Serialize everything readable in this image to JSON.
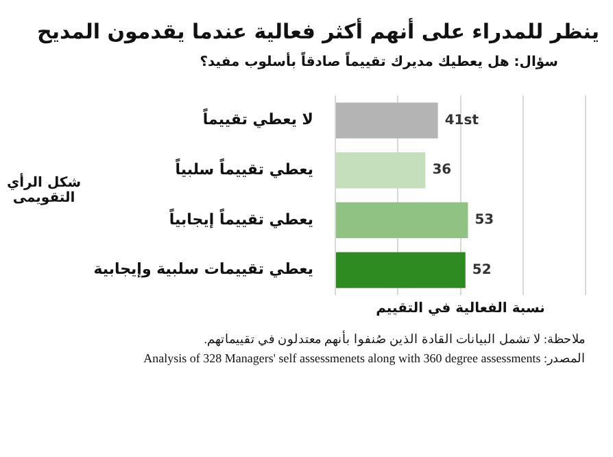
{
  "chart_data": {
    "type": "bar",
    "orientation": "horizontal",
    "title": "ينظر للمدراء على أنهم أكثر فعالية عندما يقدمون المديح",
    "subtitle": "سؤال: هل يعطيك مديرك تقييماً صادقاً بأسلوب مفيد؟",
    "ylabel": "شكل الرأي التقويمى",
    "xlabel": "نسبة الفعالية في التقييم",
    "categories": [
      "لا يعطي تقييماً",
      "يعطي تقييماً سلبياً",
      "يعطي تقييماً إيجابياً",
      "يعطي تقييمات سلبية وإيجابية"
    ],
    "values": [
      41,
      36,
      53,
      52
    ],
    "colors": [
      "#b4b4b4",
      "#c5dfbd",
      "#8fc283",
      "#2e8b22"
    ],
    "value_labels": [
      "41st",
      "36",
      "53",
      "52"
    ],
    "xlim": [
      0,
      100
    ],
    "xticks": [
      {
        "value": 0,
        "label": null
      },
      {
        "value": 25,
        "label": null
      },
      {
        "value": 50,
        "label": null
      },
      {
        "value": 75,
        "label": null
      },
      {
        "value": 100,
        "label": null
      }
    ],
    "grid": "x",
    "tick_labels": "y",
    "legend": false,
    "annotations": [
      "ملاحظة: لا تشمل البيانات القادة الذين صُنفوا بأنهم معتدلون في تقييماتهم.",
      "المصدر: Analysis of 328 Managers' self assessmenets along with 360 degree assessments"
    ]
  }
}
